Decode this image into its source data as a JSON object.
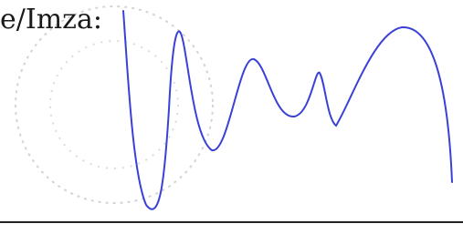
{
  "label": "e/Imza:"
}
